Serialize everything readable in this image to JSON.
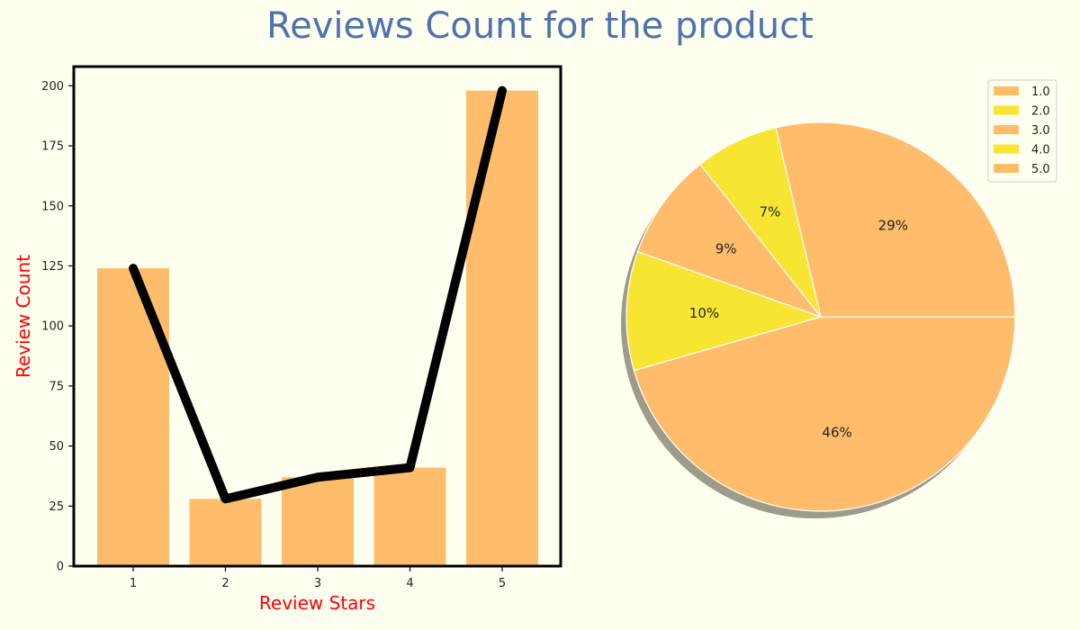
{
  "title": "Reviews Count for the product",
  "chart_data": [
    {
      "type": "bar",
      "categories": [
        "1",
        "2",
        "3",
        "4",
        "5"
      ],
      "values": [
        124,
        28,
        37,
        41,
        198
      ],
      "xlabel": "Review Stars",
      "ylabel": "Review Count",
      "ylim": [
        0,
        208
      ],
      "yticks": [
        0,
        25,
        50,
        75,
        100,
        125,
        150,
        175,
        200
      ],
      "grid": false,
      "bar_color": "#ffbc6b",
      "overlay_line": {
        "type": "line",
        "values": [
          124,
          28,
          37,
          41,
          198
        ],
        "color": "#000000"
      },
      "label_color": "#ff0000"
    },
    {
      "type": "pie",
      "labels": [
        "1.0",
        "2.0",
        "3.0",
        "4.0",
        "5.0"
      ],
      "slices": [
        {
          "label": "5.0",
          "percent": 46,
          "pct_text": "46%",
          "color": "#ffbc6b"
        },
        {
          "label": "4.0",
          "percent": 10,
          "pct_text": "10%",
          "color": "#f8e532"
        },
        {
          "label": "3.0",
          "percent": 9,
          "pct_text": "9%",
          "color": "#ffbc6b"
        },
        {
          "label": "2.0",
          "percent": 7,
          "pct_text": "7%",
          "color": "#f8e532"
        },
        {
          "label": "1.0",
          "percent": 29,
          "pct_text": "29%",
          "color": "#ffbc6b"
        }
      ],
      "legend": {
        "placement": "top-right",
        "entries": [
          {
            "label": "1.0",
            "color": "#ffbc6b"
          },
          {
            "label": "2.0",
            "color": "#f8e532"
          },
          {
            "label": "3.0",
            "color": "#ffbc6b"
          },
          {
            "label": "4.0",
            "color": "#f8e532"
          },
          {
            "label": "5.0",
            "color": "#ffbc6b"
          }
        ]
      },
      "shadow": true
    }
  ]
}
